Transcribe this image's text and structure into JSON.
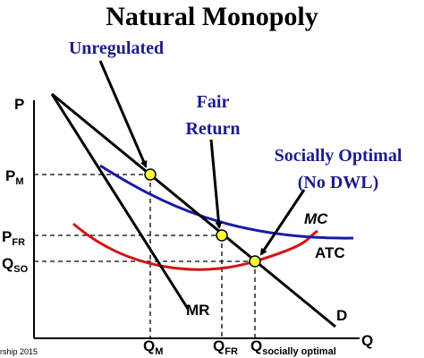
{
  "title": "Natural Monopoly",
  "annotations": {
    "unregulated": "Unregulated",
    "fair_return": [
      "Fair",
      "Return"
    ],
    "socially_optimal": [
      "Socially Optimal",
      "(No DWL)"
    ]
  },
  "axes": {
    "y": "P",
    "x": "Q"
  },
  "price_labels": [
    {
      "main": "P",
      "sub": "M"
    },
    {
      "main": "P",
      "sub": "FR"
    },
    {
      "main": "Q",
      "sub": "SO"
    }
  ],
  "quantity_labels": [
    {
      "main": "Q",
      "sub": "M"
    },
    {
      "main": "Q",
      "sub": "FR"
    },
    {
      "main": "Q",
      "sub": "socially optimal"
    }
  ],
  "curves": {
    "mc": "MC",
    "atc": "ATC",
    "mr": "MR",
    "demand": "D"
  },
  "credit": "rship 2015"
}
